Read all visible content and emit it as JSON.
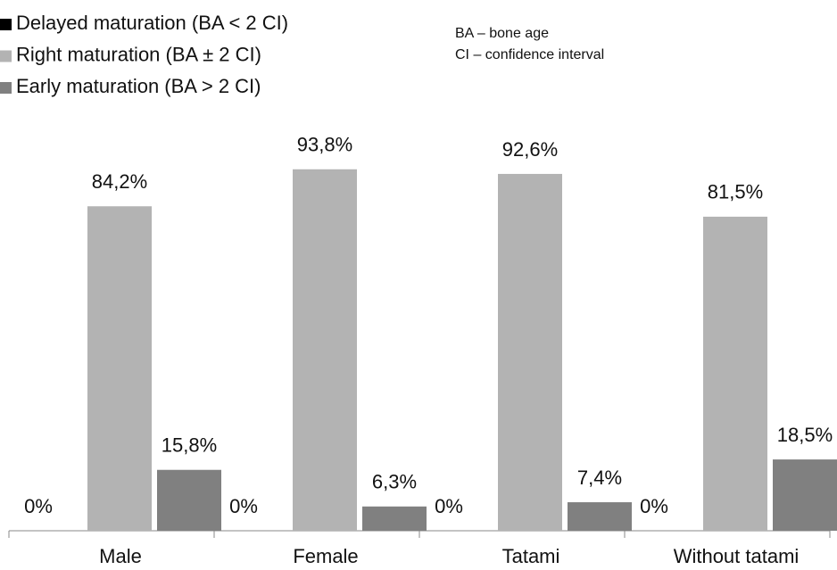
{
  "chart_data": {
    "type": "bar",
    "categories": [
      "Male",
      "Female",
      "Tatami",
      "Without tatami"
    ],
    "series": [
      {
        "name": "Delayed maturation (BA < 2 CI)",
        "color": "#000000",
        "values": [
          0,
          0,
          0,
          0
        ],
        "value_labels": [
          "0%",
          "0%",
          "0%",
          "0%"
        ]
      },
      {
        "name": "Right maturation (BA ± 2 CI)",
        "color": "#b3b3b3",
        "values": [
          84.2,
          93.8,
          92.6,
          81.5
        ],
        "value_labels": [
          "84,2%",
          "93,8%",
          "92,6%",
          "81,5%"
        ]
      },
      {
        "name": "Early maturation (BA > 2 CI)",
        "color": "#808080",
        "values": [
          15.8,
          6.3,
          7.4,
          18.5
        ],
        "value_labels": [
          "15,8%",
          "6,3%",
          "7,4%",
          "18,5%"
        ]
      }
    ],
    "annotations": [
      "BA – bone age",
      "CI – confidence interval"
    ],
    "legend": "top-left"
  }
}
